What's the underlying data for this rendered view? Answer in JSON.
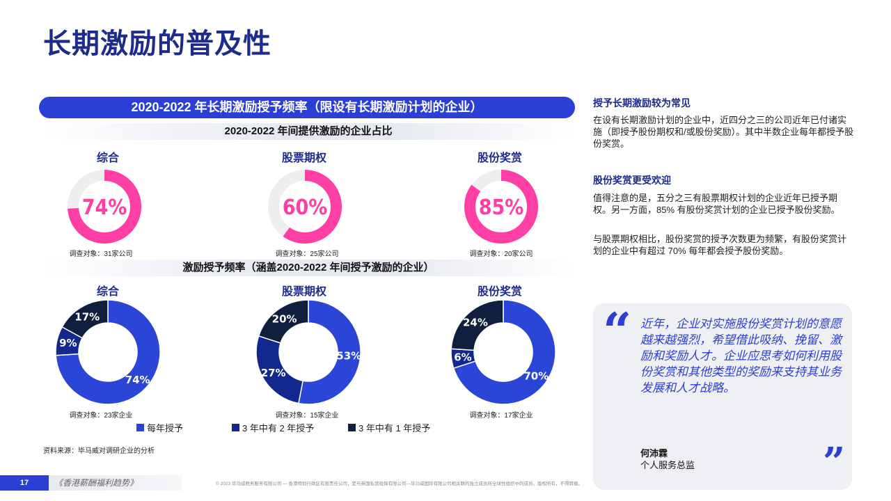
{
  "page_title": "长期激励的普及性",
  "banner": "2020-2022 年长期激励授予频率（限设有长期激励计划的企业）",
  "section1": {
    "title": "2020-2022 年间提供激励的企业占比",
    "charts": [
      {
        "title": "综合",
        "label": "74%",
        "sample": "调查对象：31家公司"
      },
      {
        "title": "股票期权",
        "label": "60%",
        "sample": "调查对象：25家公司"
      },
      {
        "title": "股份奖赏",
        "label": "85%",
        "sample": "调查对象：20家公司"
      }
    ]
  },
  "section2": {
    "title": "激励授予频率（涵盖2020-2022 年间授予激励的企业）",
    "charts": [
      {
        "title": "综合",
        "sample": "调查对象：23家企业",
        "labels": [
          "74%",
          "9%",
          "17%"
        ]
      },
      {
        "title": "股票期权",
        "sample": "调查对象：15家企业",
        "labels": [
          "53%",
          "27%",
          "20%"
        ]
      },
      {
        "title": "股份奖赏",
        "sample": "调查对象：17家企业",
        "labels": [
          "70%",
          "6%",
          "24%"
        ]
      }
    ],
    "legend": [
      "每年授予",
      "3 年中有 2 年授予",
      "3 年中有 1 年授予"
    ]
  },
  "chart_data": [
    {
      "type": "pie",
      "subtype": "ring",
      "title": "综合",
      "values": [
        74
      ],
      "max": 100,
      "color": "#ff3fa4"
    },
    {
      "type": "pie",
      "subtype": "ring",
      "title": "股票期权",
      "values": [
        60
      ],
      "max": 100,
      "color": "#ff3fa4"
    },
    {
      "type": "pie",
      "subtype": "ring",
      "title": "股份奖赏",
      "values": [
        85
      ],
      "max": 100,
      "color": "#ff3fa4"
    },
    {
      "type": "pie",
      "subtype": "donut",
      "title": "综合",
      "categories": [
        "每年授予",
        "3 年中有 2 年授予",
        "3 年中有 1 年授予"
      ],
      "values": [
        74,
        9,
        17
      ],
      "colors": [
        "#2b46d6",
        "#12288f",
        "#0f1f3d"
      ]
    },
    {
      "type": "pie",
      "subtype": "donut",
      "title": "股票期权",
      "categories": [
        "每年授予",
        "3 年中有 2 年授予",
        "3 年中有 1 年授予"
      ],
      "values": [
        53,
        27,
        20
      ],
      "colors": [
        "#2b46d6",
        "#12288f",
        "#0f1f3d"
      ]
    },
    {
      "type": "pie",
      "subtype": "donut",
      "title": "股份奖赏",
      "categories": [
        "每年授予",
        "3 年中有 2 年授予",
        "3 年中有 1 年授予"
      ],
      "values": [
        70,
        6,
        24
      ],
      "colors": [
        "#2b46d6",
        "#12288f",
        "#0f1f3d"
      ]
    }
  ],
  "source": "资料来源：毕马威对调研企业的分析",
  "side": {
    "h1": "授予长期激励较为常见",
    "p1": "在设有长期激励计划的企业中，近四分之三的公司近年已付诸实施（即授予股份期权和/或股份奖励）。其中半数企业每年都授予股份奖赏。",
    "h2": "股份奖赏更受欢迎",
    "p2": "值得注意的是，五分之三有股票期权计划的企业近年已授予期权。另一方面，85% 有股份奖赏计划的企业已授予股份奖励。",
    "p3": "与股票期权相比，股份奖赏的授予次数更为频繁，有股份奖赏计划的企业中有超过 70% 每年都会授予股份奖励。"
  },
  "quote": {
    "text": "近年，企业对实施股份奖赏计划的意愿越来越强烈，希望借此吸纳、挽留、激励和奖励人才。企业应思考如何利用股份奖赏和其他类型的奖励来支持其业务发展和人才战略。",
    "open_mark": "“",
    "close_mark": "”",
    "person": "何沛霖",
    "role": "个人服务总监"
  },
  "footer": {
    "page": "17",
    "publication": "《香港薪酬福利趋势》",
    "note": "© 2023 毕马威税务服务有限公司 — 香港特别行政区有限责任公司，是与英国私营担保有限公司—毕马威国际有限公司相关联的独立成员所全球性组织中的成员。版权所有，不得转载。"
  },
  "colors": {
    "accent": "#2b3fd4",
    "title": "#1c2b8c",
    "pink": "#ff3fa4",
    "ring_bg": "#eeeeee"
  }
}
